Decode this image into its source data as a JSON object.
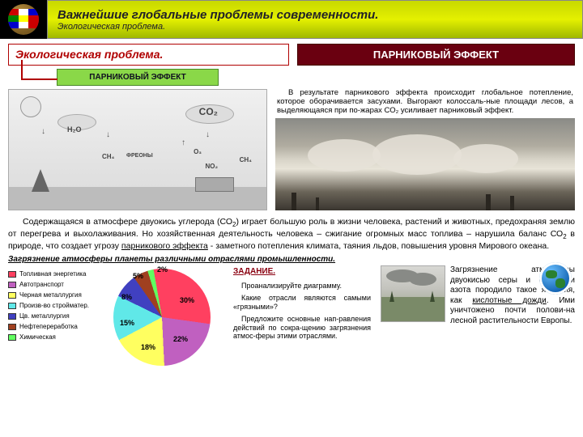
{
  "header": {
    "title": "Важнейшие глобальные проблемы современности.",
    "subtitle": "Экологическая проблема."
  },
  "headings": {
    "left": "Экологическая проблема.",
    "right": "ПАРНИКОВЫЙ ЭФФЕКТ",
    "subbox": "ПАРНИКОВЫЙ ЭФФЕКТ"
  },
  "fire_text": "В результате парникового эффекта происходит глобальное потепление, которое оборачивается засухами. Выгорают колоссаль-ные площади лесов, а выделяющаяся при по-жарах СО₂ усиливает парниковый эффект.",
  "main_para": "Содержащаяся в атмосфере двуокись углерода (СО₂) играет большую роль в жизни человека, растений и животных, предохраняя землю от перегрева и выхолаживания. Но хозяйственная деятельность человека – сжигание огромных масс топлива – нарушила баланс СО₂ в природе, что создает угрозу парникового эффекта – заметного потепления климата, таяния льдов, повышения уровня Мирового океана.",
  "pollution_title": "Загрязнение атмосферы планеты различными отраслями промышленности.",
  "legend": [
    {
      "label": "Топливная энергетика",
      "color": "#ff4060"
    },
    {
      "label": "Автотранспорт",
      "color": "#c060c0"
    },
    {
      "label": "Черная металлургия",
      "color": "#ffff60"
    },
    {
      "label": "Произв-во стройматер.",
      "color": "#60e8e8"
    },
    {
      "label": "Цв. металлургия",
      "color": "#4040c0"
    },
    {
      "label": "Нефтепереработка",
      "color": "#a04020"
    },
    {
      "label": "Химическая",
      "color": "#60ff60"
    }
  ],
  "pie": {
    "slices": [
      {
        "value": 30,
        "color": "#ff4060",
        "label": "30%"
      },
      {
        "value": 22,
        "color": "#c060c0",
        "label": "22%"
      },
      {
        "value": 18,
        "color": "#ffff60",
        "label": "18%"
      },
      {
        "value": 15,
        "color": "#60e8e8",
        "label": "15%"
      },
      {
        "value": 8,
        "color": "#4040c0",
        "label": "8%"
      },
      {
        "value": 5,
        "color": "#a04020",
        "label": "5%"
      },
      {
        "value": 2,
        "color": "#60ff60",
        "label": "2%"
      }
    ]
  },
  "task": {
    "head": "ЗАДАНИЕ.",
    "p1": "Проанализируйте диаграмму.",
    "p2": "Какие отрасли являются самыми «грязными»?",
    "p3": "Предложите основные нап-равления действий по сокра-щению загрязнения атмос-феры этими отраслями."
  },
  "acid_text": "Загрязнение атмосферы двуокисью серы и окислами азота породило такое явления, как кислотные дожди. Ими уничтожено почти полови-на лесной растительности Европы.",
  "diagram_labels": {
    "h2o": "H₂O",
    "co2": "CO₂",
    "ch4": "CH₄",
    "o3": "O₃",
    "no2": "NO₂",
    "freons": "ФРЕОНЫ"
  },
  "colors": {
    "header_accent_start": "#c8d800",
    "header_accent_end": "#a0b800",
    "dark_red": "#6a0010",
    "border_red": "#b00000",
    "green_box": "#8ad848"
  }
}
